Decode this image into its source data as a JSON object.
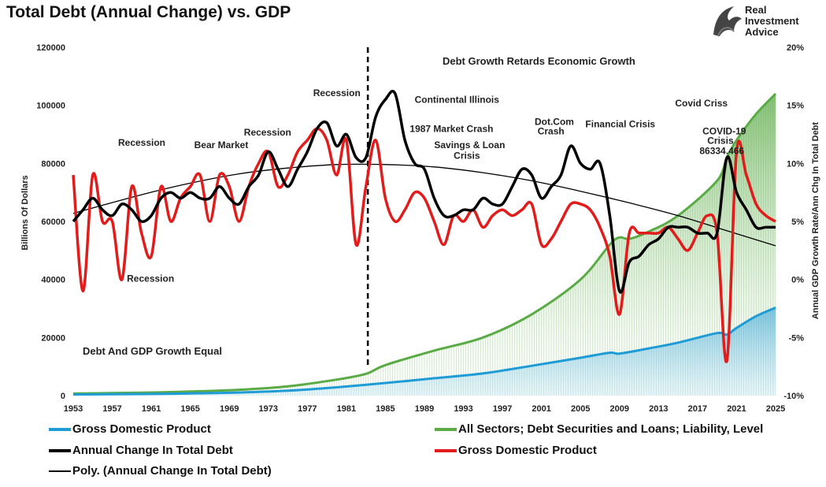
{
  "header": {
    "title": "Total Debt (Annual Change) vs. GDP",
    "logo_line1": "Real",
    "logo_line2": "Investment",
    "logo_line3": "Advice"
  },
  "colors": {
    "gdp_level": "#1f9bd6",
    "debt_level": "#5aab46",
    "debt_change": "#000000",
    "gdp_growth": "#e21b1b",
    "poly": "#000000"
  },
  "chart_data": {
    "type": "line",
    "title": "Total Debt (Annual Change) vs. GDP",
    "xlabel": "",
    "ylabel_left": "Billions Of Dollars",
    "ylabel_right": "Annual GDP Growth Rate/Ann Chg In Total Debt",
    "x_range": [
      1953,
      2025
    ],
    "y_left_range": [
      0,
      120000
    ],
    "y_right_range": [
      -10,
      20
    ],
    "x_ticks": [
      "1953",
      "1957",
      "1961",
      "1965",
      "1969",
      "1973",
      "1977",
      "1981",
      "1985",
      "1989",
      "1993",
      "1997",
      "2001",
      "2005",
      "2009",
      "2013",
      "2017",
      "2021",
      "2025"
    ],
    "y_left_ticks": [
      "0",
      "20000",
      "40000",
      "60000",
      "80000",
      "100000",
      "120000"
    ],
    "y_right_ticks": [
      "-10%",
      "-5%",
      "0%",
      "5%",
      "10%",
      "15%",
      "20%"
    ],
    "divider_year": 1983.2,
    "series": [
      {
        "name": "Gross Domestic Product",
        "axis": "left",
        "style": "area",
        "points": [
          [
            1953,
            380
          ],
          [
            1960,
            540
          ],
          [
            1965,
            740
          ],
          [
            1970,
            1070
          ],
          [
            1975,
            1690
          ],
          [
            1980,
            2860
          ],
          [
            1985,
            4340
          ],
          [
            1990,
            5960
          ],
          [
            1995,
            7640
          ],
          [
            2000,
            10250
          ],
          [
            2005,
            13040
          ],
          [
            2008,
            14770
          ],
          [
            2009,
            14480
          ],
          [
            2012,
            16250
          ],
          [
            2015,
            18240
          ],
          [
            2019,
            21540
          ],
          [
            2020,
            21000
          ],
          [
            2021,
            23300
          ],
          [
            2023,
            27360
          ],
          [
            2025,
            30300
          ]
        ]
      },
      {
        "name": "All Sectors; Debt Securities and Loans; Liability, Level",
        "axis": "left",
        "style": "area",
        "points": [
          [
            1953,
            700
          ],
          [
            1960,
            1000
          ],
          [
            1965,
            1400
          ],
          [
            1970,
            2000
          ],
          [
            1975,
            3200
          ],
          [
            1980,
            5500
          ],
          [
            1983,
            7500
          ],
          [
            1985,
            10500
          ],
          [
            1990,
            15500
          ],
          [
            1995,
            20000
          ],
          [
            2000,
            28000
          ],
          [
            2005,
            40000
          ],
          [
            2008,
            52000
          ],
          [
            2009,
            54500
          ],
          [
            2010,
            54000
          ],
          [
            2012,
            56500
          ],
          [
            2015,
            62000
          ],
          [
            2019,
            74000
          ],
          [
            2020,
            82000
          ],
          [
            2021,
            88000
          ],
          [
            2023,
            97000
          ],
          [
            2025,
            104000
          ]
        ]
      },
      {
        "name": "Annual Change In Total Debt",
        "axis": "right",
        "style": "line",
        "points": [
          [
            1953,
            5
          ],
          [
            1954,
            6
          ],
          [
            1955,
            7
          ],
          [
            1956,
            6
          ],
          [
            1957,
            5.5
          ],
          [
            1958,
            6.5
          ],
          [
            1959,
            6
          ],
          [
            1960,
            5
          ],
          [
            1961,
            5.5
          ],
          [
            1962,
            7
          ],
          [
            1963,
            7.5
          ],
          [
            1964,
            7
          ],
          [
            1965,
            7.5
          ],
          [
            1966,
            7
          ],
          [
            1967,
            7
          ],
          [
            1968,
            8
          ],
          [
            1969,
            7
          ],
          [
            1970,
            6.5
          ],
          [
            1971,
            8
          ],
          [
            1972,
            9
          ],
          [
            1973,
            11
          ],
          [
            1974,
            9.5
          ],
          [
            1975,
            8
          ],
          [
            1976,
            9.5
          ],
          [
            1977,
            11
          ],
          [
            1978,
            13
          ],
          [
            1979,
            13.5
          ],
          [
            1980,
            11.5
          ],
          [
            1981,
            12.5
          ],
          [
            1982,
            10.5
          ],
          [
            1983,
            10.5
          ],
          [
            1984,
            14
          ],
          [
            1985,
            15.5
          ],
          [
            1986,
            16
          ],
          [
            1987,
            12
          ],
          [
            1988,
            10
          ],
          [
            1989,
            9.5
          ],
          [
            1990,
            7
          ],
          [
            1991,
            5.5
          ],
          [
            1992,
            5.5
          ],
          [
            1993,
            6
          ],
          [
            1994,
            6
          ],
          [
            1995,
            7
          ],
          [
            1996,
            6.5
          ],
          [
            1997,
            6.5
          ],
          [
            1998,
            8
          ],
          [
            1999,
            9.5
          ],
          [
            2000,
            9
          ],
          [
            2001,
            7
          ],
          [
            2002,
            8
          ],
          [
            2003,
            9
          ],
          [
            2004,
            11.5
          ],
          [
            2005,
            10
          ],
          [
            2006,
            9.5
          ],
          [
            2007,
            10
          ],
          [
            2008,
            5.5
          ],
          [
            2009,
            -1
          ],
          [
            2010,
            1.5
          ],
          [
            2011,
            2
          ],
          [
            2012,
            3
          ],
          [
            2013,
            3.5
          ],
          [
            2014,
            4.5
          ],
          [
            2015,
            4.5
          ],
          [
            2016,
            4.5
          ],
          [
            2017,
            4
          ],
          [
            2018,
            4
          ],
          [
            2019,
            4
          ],
          [
            2020,
            10.5
          ],
          [
            2021,
            7.5
          ],
          [
            2022,
            6
          ],
          [
            2023,
            4.5
          ],
          [
            2024,
            4.5
          ],
          [
            2025,
            4.5
          ]
        ]
      },
      {
        "name": "Gross Domestic Product",
        "axis": "right",
        "style": "line",
        "points": [
          [
            1953,
            9
          ],
          [
            1954,
            -1
          ],
          [
            1955,
            9
          ],
          [
            1956,
            5
          ],
          [
            1957,
            5
          ],
          [
            1958,
            0
          ],
          [
            1959,
            8
          ],
          [
            1960,
            4
          ],
          [
            1961,
            2
          ],
          [
            1962,
            8
          ],
          [
            1963,
            5
          ],
          [
            1964,
            7
          ],
          [
            1965,
            8
          ],
          [
            1966,
            9
          ],
          [
            1967,
            5
          ],
          [
            1968,
            9
          ],
          [
            1969,
            8
          ],
          [
            1970,
            5
          ],
          [
            1971,
            8
          ],
          [
            1972,
            10
          ],
          [
            1973,
            11
          ],
          [
            1974,
            8
          ],
          [
            1975,
            9
          ],
          [
            1976,
            11
          ],
          [
            1977,
            12
          ],
          [
            1978,
            13
          ],
          [
            1979,
            12
          ],
          [
            1980,
            9
          ],
          [
            1981,
            12
          ],
          [
            1982,
            3
          ],
          [
            1983,
            8
          ],
          [
            1984,
            12
          ],
          [
            1985,
            7
          ],
          [
            1986,
            5
          ],
          [
            1987,
            6
          ],
          [
            1988,
            7.5
          ],
          [
            1989,
            7
          ],
          [
            1990,
            5
          ],
          [
            1991,
            3
          ],
          [
            1992,
            5.5
          ],
          [
            1993,
            5
          ],
          [
            1994,
            6
          ],
          [
            1995,
            4.5
          ],
          [
            1996,
            5.5
          ],
          [
            1997,
            6
          ],
          [
            1998,
            5.5
          ],
          [
            1999,
            6
          ],
          [
            2000,
            6.5
          ],
          [
            2001,
            3
          ],
          [
            2002,
            3.5
          ],
          [
            2003,
            5
          ],
          [
            2004,
            6.5
          ],
          [
            2005,
            6.5
          ],
          [
            2006,
            6
          ],
          [
            2007,
            4.5
          ],
          [
            2008,
            2
          ],
          [
            2009,
            -3
          ],
          [
            2010,
            4
          ],
          [
            2011,
            4
          ],
          [
            2012,
            4
          ],
          [
            2013,
            4
          ],
          [
            2014,
            4.5
          ],
          [
            2015,
            3.5
          ],
          [
            2016,
            2.5
          ],
          [
            2017,
            4
          ],
          [
            2018,
            5.5
          ],
          [
            2019,
            4
          ],
          [
            2020,
            -7
          ],
          [
            2021,
            11
          ],
          [
            2022,
            9
          ],
          [
            2023,
            6.5
          ],
          [
            2024,
            5.5
          ],
          [
            2025,
            5
          ]
        ]
      },
      {
        "name": "Poly. (Annual Change In Total Debt)",
        "axis": "right",
        "style": "trend",
        "points": [
          [
            1953,
            5.7
          ],
          [
            1960,
            7.3
          ],
          [
            1965,
            8.3
          ],
          [
            1970,
            9.1
          ],
          [
            1975,
            9.6
          ],
          [
            1980,
            9.9
          ],
          [
            1985,
            9.9
          ],
          [
            1990,
            9.7
          ],
          [
            1995,
            9.2
          ],
          [
            2000,
            8.5
          ],
          [
            2005,
            7.6
          ],
          [
            2010,
            6.6
          ],
          [
            2015,
            5.5
          ],
          [
            2020,
            4.2
          ],
          [
            2025,
            2.9
          ]
        ]
      }
    ],
    "annotations": [
      {
        "text": "Recession",
        "x": 1957.6,
        "y": 11.5
      },
      {
        "text": "Recession",
        "x": 1958.5,
        "y": -0.2
      },
      {
        "text": "Bear Market",
        "x": 1965.4,
        "y": 11.3
      },
      {
        "text": "Recession",
        "x": 1970.5,
        "y": 12.4
      },
      {
        "text": "Recession",
        "x": 1977.6,
        "y": 15.8
      },
      {
        "text": "Continental Illinois",
        "x": 1988,
        "y": 15.2
      },
      {
        "text": "1987 Market Crash",
        "x": 1987.5,
        "y": 12.7
      },
      {
        "text": "Savings & Loan",
        "x": 1990,
        "y": 11.3
      },
      {
        "text": "Crisis",
        "x": 1992,
        "y": 10.4
      },
      {
        "text": "Dot.Com",
        "x": 2000.3,
        "y": 13.3
      },
      {
        "text": "Crash",
        "x": 2000.6,
        "y": 12.5
      },
      {
        "text": "Financial Crisis",
        "x": 2005.5,
        "y": 13.1
      },
      {
        "text": "Covid Criss",
        "x": 2014.7,
        "y": 14.9
      },
      {
        "text": "COVID-19",
        "x": 2017.5,
        "y": 12.5
      },
      {
        "text": "Crisis",
        "x": 2018,
        "y": 11.7
      },
      {
        "text": "86334.466",
        "x": 2017.2,
        "y": 10.8
      }
    ],
    "region_labels": {
      "right_region": "Debt Growth Retards Economic Growth",
      "left_region": "Debt And GDP Growth Equal"
    },
    "legend": [
      "Gross Domestic Product",
      "All Sectors; Debt Securities and Loans; Liability, Level",
      "Annual Change In Total Debt",
      "Gross Domestic Product",
      "Poly. (Annual Change In Total Debt)"
    ]
  }
}
